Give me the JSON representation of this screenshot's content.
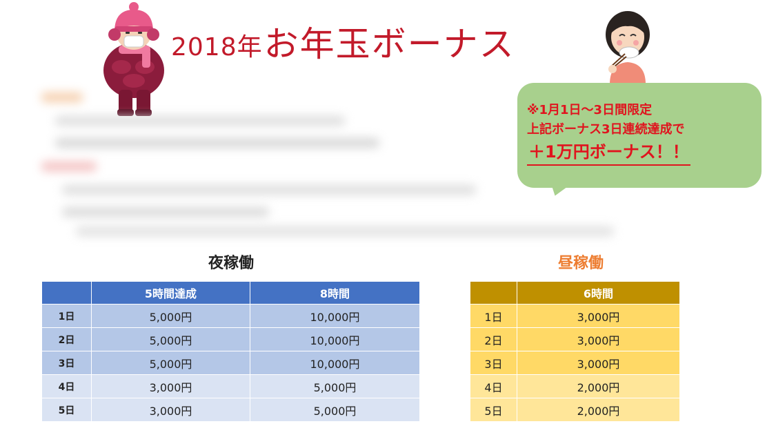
{
  "title": {
    "year": "2018年",
    "main": "お年玉ボーナス"
  },
  "bubble": {
    "line1": "※1月1日～3日間限定",
    "line2": "上記ボーナス3日連続達成で",
    "line3": "＋1万円ボーナス！！"
  },
  "night": {
    "title": "夜稼働",
    "headers": [
      "",
      "5時間達成",
      "8時間"
    ],
    "rows": [
      {
        "day": "1日",
        "v1": "5,000円",
        "v2": "10,000円"
      },
      {
        "day": "2日",
        "v1": "5,000円",
        "v2": "10,000円"
      },
      {
        "day": "3日",
        "v1": "5,000円",
        "v2": "10,000円"
      },
      {
        "day": "4日",
        "v1": "3,000円",
        "v2": "5,000円"
      },
      {
        "day": "5日",
        "v1": "3,000円",
        "v2": "5,000円"
      }
    ]
  },
  "day": {
    "title": "昼稼働",
    "headers": [
      "",
      "6時間"
    ],
    "rows": [
      {
        "day": "1日",
        "v1": "3,000円"
      },
      {
        "day": "2日",
        "v1": "3,000円"
      },
      {
        "day": "3日",
        "v1": "3,000円"
      },
      {
        "day": "4日",
        "v1": "2,000円"
      },
      {
        "day": "5日",
        "v1": "2,000円"
      }
    ]
  },
  "colors": {
    "title_red": "#c21a2a",
    "bubble_green": "#a8d08d",
    "bubble_text_red": "#e0141e",
    "night_header": "#4472c4",
    "night_row_dark": "#b4c7e7",
    "night_row_light": "#dae3f3",
    "day_header": "#bf9000",
    "day_row_dark": "#ffd966",
    "day_row_light": "#ffe699",
    "day_title_orange": "#ed7d31"
  },
  "icons": {
    "left": "winter-person-illustration-icon",
    "right": "woman-eating-illustration-icon"
  }
}
